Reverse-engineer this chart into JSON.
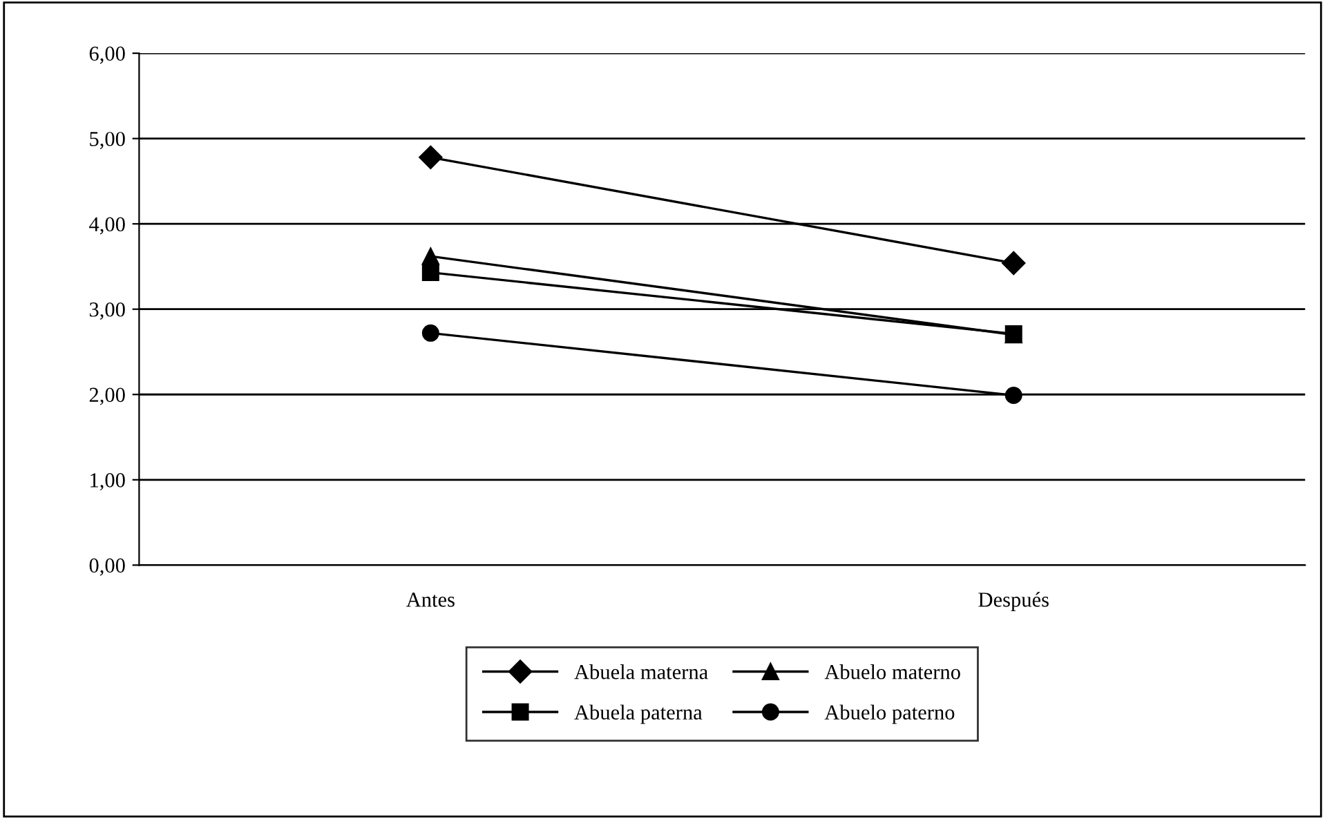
{
  "chart_data": {
    "type": "line",
    "categories": [
      "Antes",
      "Después"
    ],
    "series": [
      {
        "name": "Abuela materna",
        "color": "#000000",
        "marker": "diamond",
        "values": [
          4.78,
          3.54
        ]
      },
      {
        "name": "Abuela paterna",
        "color": "#000000",
        "marker": "square",
        "values": [
          3.43,
          2.71
        ]
      },
      {
        "name": "Abuelo materno",
        "color": "#000000",
        "marker": "triangle",
        "values": [
          3.62,
          2.7
        ]
      },
      {
        "name": "Abuelo paterno",
        "color": "#000000",
        "marker": "circle",
        "values": [
          2.72,
          1.99
        ]
      }
    ],
    "ylim": [
      0,
      6
    ],
    "yticks": [
      {
        "value": 0,
        "label": "0,00"
      },
      {
        "value": 1,
        "label": "1,00"
      },
      {
        "value": 2,
        "label": "2,00"
      },
      {
        "value": 3,
        "label": "3,00"
      },
      {
        "value": 4,
        "label": "4,00"
      },
      {
        "value": 5,
        "label": "5,00"
      },
      {
        "value": 6,
        "label": "6,00"
      }
    ],
    "grid": "y",
    "legend": "bottom",
    "line_style": "solid"
  }
}
